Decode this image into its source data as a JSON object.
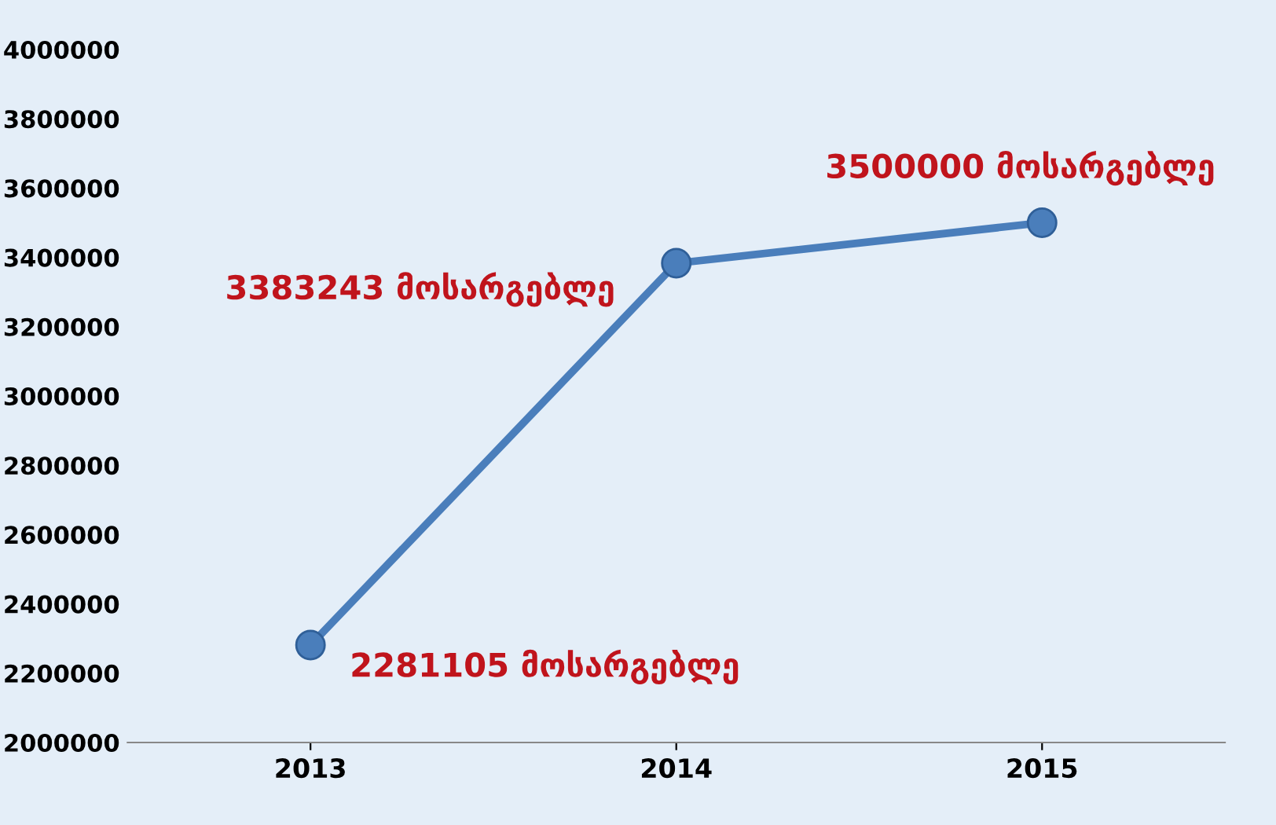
{
  "chart_data": {
    "type": "line",
    "categories": [
      "2013",
      "2014",
      "2015"
    ],
    "series": [
      {
        "color": "#4a7ebb",
        "values": [
          2281105,
          3383243,
          3500000
        ],
        "value_labels": [
          "2281105 მოსარგებლე",
          "3383243 მოსარგებლე",
          "3500000 მოსარგებლე"
        ]
      }
    ],
    "ylim": [
      2000000,
      4000000
    ],
    "yticks": [
      2000000,
      2200000,
      2400000,
      2600000,
      2800000,
      3000000,
      3200000,
      3400000,
      3600000,
      3800000,
      4000000
    ],
    "marker": "circle",
    "line_style": "solid",
    "grid": false,
    "legend": false
  }
}
